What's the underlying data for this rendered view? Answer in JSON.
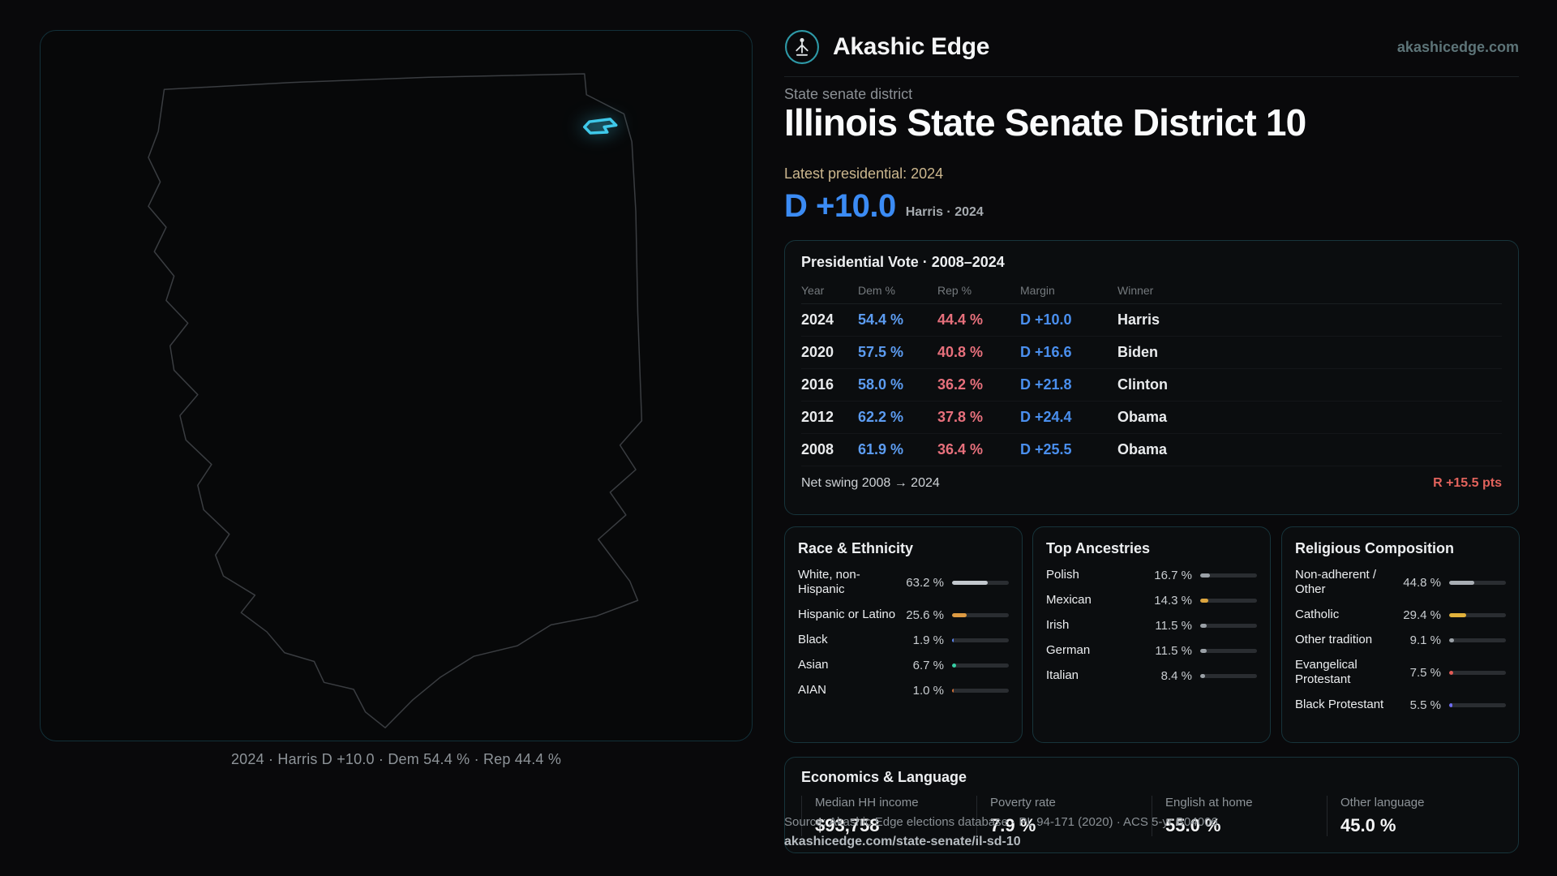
{
  "brand": {
    "name": "Akashic Edge",
    "domain": "akashicedge.com"
  },
  "header": {
    "kicker": "State senate district",
    "title": "Illinois State Senate District 10",
    "latest_label": "Latest presidential: 2024",
    "margin_value": "D +10.0",
    "margin_caption": "Harris · 2024"
  },
  "map": {
    "caption": "2024 · Harris D +10.0 · Dem 54.4 % · Rep 44.4 %"
  },
  "colors": {
    "dem_blue": "#3b8bf4",
    "rep_red": "#e7707c",
    "accent_border": "#17343b",
    "district_highlight": "#3fc9ea",
    "swing_red": "#e2635c"
  },
  "presidential": {
    "title": "Presidential Vote · 2008–2024",
    "columns": [
      "Year",
      "Dem %",
      "Rep %",
      "Margin",
      "Winner"
    ],
    "rows": [
      {
        "year": "2024",
        "dem": "54.4 %",
        "rep": "44.4 %",
        "margin": "D +10.0",
        "winner": "Harris"
      },
      {
        "year": "2020",
        "dem": "57.5 %",
        "rep": "40.8 %",
        "margin": "D +16.6",
        "winner": "Biden"
      },
      {
        "year": "2016",
        "dem": "58.0 %",
        "rep": "36.2 %",
        "margin": "D +21.8",
        "winner": "Clinton"
      },
      {
        "year": "2012",
        "dem": "62.2 %",
        "rep": "37.8 %",
        "margin": "D +24.4",
        "winner": "Obama"
      },
      {
        "year": "2008",
        "dem": "61.9 %",
        "rep": "36.4 %",
        "margin": "D +25.5",
        "winner": "Obama"
      }
    ],
    "net_swing_label": "Net swing 2008 → 2024",
    "net_swing_value": "R +15.5 pts"
  },
  "demographics": [
    {
      "title": "Race & Ethnicity",
      "rows": [
        {
          "label": "White, non-Hispanic",
          "value": "63.2 %",
          "pct": 63.2,
          "color": "#c3c8ce"
        },
        {
          "label": "Hispanic or Latino",
          "value": "25.6 %",
          "pct": 25.6,
          "color": "#dd9a42"
        },
        {
          "label": "Black",
          "value": "1.9 %",
          "pct": 1.9,
          "color": "#5c84ef"
        },
        {
          "label": "Asian",
          "value": "6.7 %",
          "pct": 6.7,
          "color": "#35cfa4"
        },
        {
          "label": "AIAN",
          "value": "1.0 %",
          "pct": 1.0,
          "color": "#cf6f38"
        }
      ]
    },
    {
      "title": "Top Ancestries",
      "rows": [
        {
          "label": "Polish",
          "value": "16.7 %",
          "pct": 16.7,
          "color": "#9aa0a6"
        },
        {
          "label": "Mexican",
          "value": "14.3 %",
          "pct": 14.3,
          "color": "#dca53f"
        },
        {
          "label": "Irish",
          "value": "11.5 %",
          "pct": 11.5,
          "color": "#9aa0a6"
        },
        {
          "label": "German",
          "value": "11.5 %",
          "pct": 11.5,
          "color": "#9aa0a6"
        },
        {
          "label": "Italian",
          "value": "8.4 %",
          "pct": 8.4,
          "color": "#9aa0a6"
        }
      ]
    },
    {
      "title": "Religious Composition",
      "rows": [
        {
          "label": "Non-adherent / Other",
          "value": "44.8 %",
          "pct": 44.8,
          "color": "#a9aeb4"
        },
        {
          "label": "Catholic",
          "value": "29.4 %",
          "pct": 29.4,
          "color": "#e2b23b"
        },
        {
          "label": "Other tradition",
          "value": "9.1 %",
          "pct": 9.1,
          "color": "#9aa0a6"
        },
        {
          "label": "Evangelical Protestant",
          "value": "7.5 %",
          "pct": 7.5,
          "color": "#e25a55"
        },
        {
          "label": "Black Protestant",
          "value": "5.5 %",
          "pct": 5.5,
          "color": "#6e6cf2"
        }
      ]
    }
  ],
  "economics": {
    "title": "Economics & Language",
    "stats": [
      {
        "label": "Median HH income",
        "value": "$93,758"
      },
      {
        "label": "Poverty rate",
        "value": "7.9 %"
      },
      {
        "label": "English at home",
        "value": "55.0 %"
      },
      {
        "label": "Other language",
        "value": "45.0 %"
      }
    ]
  },
  "footer": {
    "line1": "Source: Akashic Edge elections database · PL 94-171 (2020) · ACS 5-yr B04006",
    "line2": "akashicedge.com/state-senate/il-sd-10"
  },
  "chart_data": [
    {
      "type": "table",
      "title": "Presidential Vote · 2008–2024",
      "columns": [
        "Year",
        "Dem %",
        "Rep %",
        "Margin",
        "Winner"
      ],
      "rows": [
        [
          2024,
          54.4,
          44.4,
          "D +10.0",
          "Harris"
        ],
        [
          2020,
          57.5,
          40.8,
          "D +16.6",
          "Biden"
        ],
        [
          2016,
          58.0,
          36.2,
          "D +21.8",
          "Clinton"
        ],
        [
          2012,
          62.2,
          37.8,
          "D +24.4",
          "Obama"
        ],
        [
          2008,
          61.9,
          36.4,
          "D +25.5",
          "Obama"
        ]
      ],
      "footnote": "Net swing 2008 → 2024: R +15.5 pts"
    },
    {
      "type": "bar",
      "title": "Race & Ethnicity",
      "categories": [
        "White, non-Hispanic",
        "Hispanic or Latino",
        "Black",
        "Asian",
        "AIAN"
      ],
      "values": [
        63.2,
        25.6,
        1.9,
        6.7,
        1.0
      ],
      "xlabel": "",
      "ylabel": "Percent",
      "ylim": [
        0,
        100
      ]
    },
    {
      "type": "bar",
      "title": "Top Ancestries",
      "categories": [
        "Polish",
        "Mexican",
        "Irish",
        "German",
        "Italian"
      ],
      "values": [
        16.7,
        14.3,
        11.5,
        11.5,
        8.4
      ],
      "xlabel": "",
      "ylabel": "Percent",
      "ylim": [
        0,
        100
      ]
    },
    {
      "type": "bar",
      "title": "Religious Composition",
      "categories": [
        "Non-adherent / Other",
        "Catholic",
        "Other tradition",
        "Evangelical Protestant",
        "Black Protestant"
      ],
      "values": [
        44.8,
        29.4,
        9.1,
        7.5,
        5.5
      ],
      "xlabel": "",
      "ylabel": "Percent",
      "ylim": [
        0,
        100
      ]
    },
    {
      "type": "table",
      "title": "Economics & Language",
      "columns": [
        "Median HH income",
        "Poverty rate",
        "English at home",
        "Other language"
      ],
      "rows": [
        [
          "$93,758",
          "7.9 %",
          "55.0 %",
          "45.0 %"
        ]
      ]
    }
  ]
}
